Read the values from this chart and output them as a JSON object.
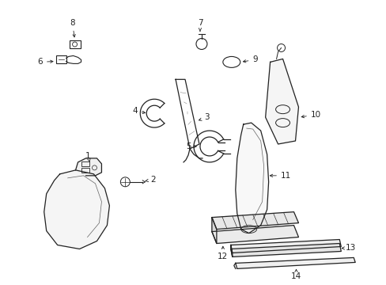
{
  "bg_color": "#ffffff",
  "line_color": "#222222",
  "fig_width": 4.89,
  "fig_height": 3.6,
  "dpi": 100
}
